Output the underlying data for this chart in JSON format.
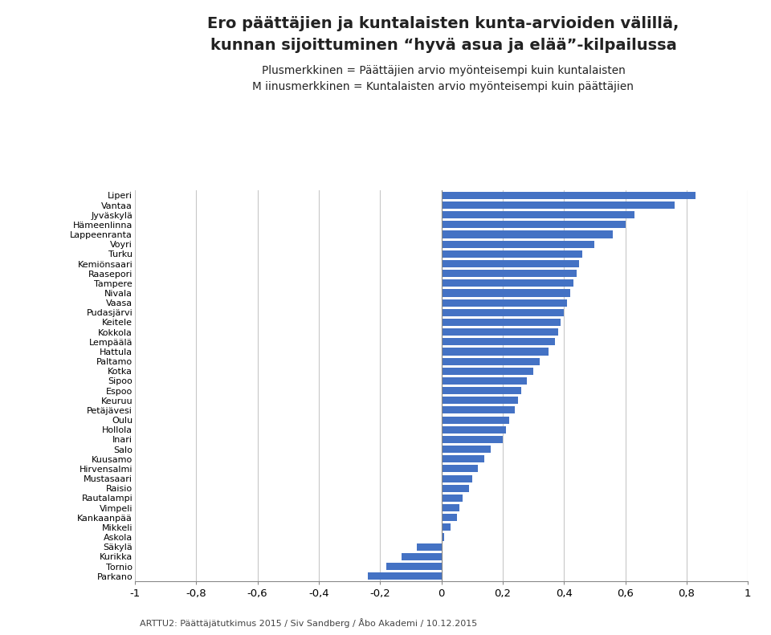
{
  "title_line1": "Ero päättäjien ja kuntalaisten kunta-arvioiden välillä,",
  "title_line2": "kunnan sijoittuminen “hyvä asua ja elää”-kilpailussa",
  "subtitle1": "Plusmerkkinen = Päättäjien arvio myönteisempi kuin kuntalaisten",
  "subtitle2": "M iinusmerkkinen = Kuntalaisten arvio myönteisempi kuin päättäjien",
  "categories": [
    "Liperi",
    "Vantaa",
    "Jyväskylä",
    "Hämeenlinna",
    "Lappeenranta",
    "Voyri",
    "Turku",
    "Kemiönsaari",
    "Raasepori",
    "Tampere",
    "Nivala",
    "Vaasa",
    "Pudasjärvi",
    "Keitele",
    "Kokkola",
    "Lempäälä",
    "Hattula",
    "Paltamo",
    "Kotka",
    "Sipoo",
    "Espoo",
    "Keuruu",
    "Petäjävesi",
    "Oulu",
    "Hollola",
    "Inari",
    "Salo",
    "Kuusamo",
    "Hirvensalmi",
    "Mustasaari",
    "Raisio",
    "Rautalampi",
    "Vimpeli",
    "Kankaanpää",
    "Mikkeli",
    "Askola",
    "Säkylä",
    "Kurikka",
    "Tornio",
    "Parkano"
  ],
  "values": [
    0.83,
    0.76,
    0.63,
    0.6,
    0.56,
    0.5,
    0.46,
    0.45,
    0.44,
    0.43,
    0.42,
    0.41,
    0.4,
    0.39,
    0.38,
    0.37,
    0.35,
    0.32,
    0.3,
    0.28,
    0.26,
    0.25,
    0.24,
    0.22,
    0.21,
    0.2,
    0.16,
    0.14,
    0.12,
    0.1,
    0.09,
    0.07,
    0.06,
    0.05,
    0.03,
    0.01,
    -0.08,
    -0.13,
    -0.18,
    -0.24
  ],
  "bar_color": "#4472C4",
  "xlim": [
    -1,
    1
  ],
  "xticks": [
    -1.0,
    -0.8,
    -0.6,
    -0.4,
    -0.2,
    0.0,
    0.2,
    0.4,
    0.6,
    0.8,
    1.0
  ],
  "xtick_labels": [
    "-1",
    "-0,8",
    "-0,6",
    "-0,4",
    "-0,2",
    "0",
    "0,2",
    "0,4",
    "0,6",
    "0,8",
    "1"
  ],
  "footer": "ARTTU2: Päättäjätutkimus 2015 / Siv Sandberg / Åbo Akademi / 10.12.2015",
  "background_color": "#ffffff",
  "grid_color": "#c8c8c8"
}
